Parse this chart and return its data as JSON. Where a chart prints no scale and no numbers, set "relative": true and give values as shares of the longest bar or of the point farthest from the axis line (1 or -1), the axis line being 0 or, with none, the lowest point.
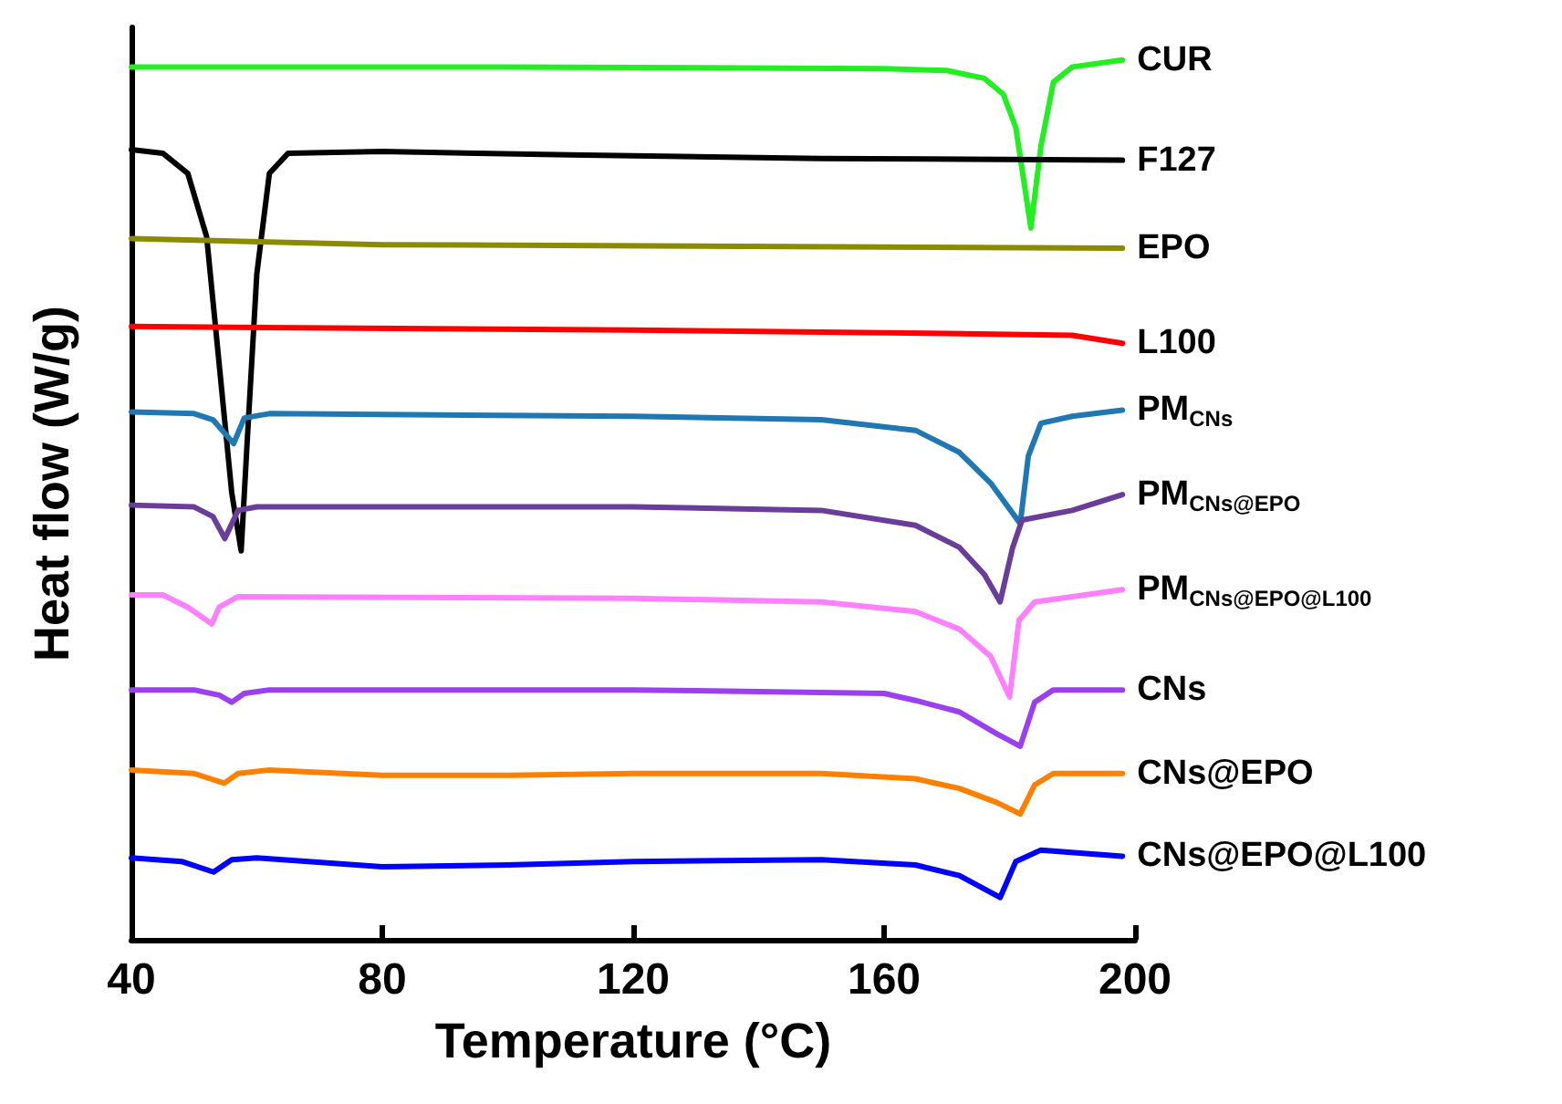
{
  "chart_data": {
    "type": "line",
    "relative": true,
    "xlabel": "Temperature (°C)",
    "ylabel": "Heat flow (W/g)",
    "xlim": [
      40,
      200
    ],
    "xticks": [
      40,
      80,
      120,
      160,
      200
    ],
    "legend": false,
    "grid": false,
    "marker": "none",
    "line_style": "solid",
    "series": [
      {
        "name": "CUR",
        "color": "#22ee22",
        "x": [
          40,
          100,
          160,
          170,
          176,
          179,
          181,
          183.4,
          185,
          187,
          190,
          198
        ],
        "values": [
          0.992,
          0.992,
          0.99,
          0.988,
          0.979,
          0.961,
          0.923,
          0.809,
          0.902,
          0.975,
          0.992,
          1.0
        ]
      },
      {
        "name": "F127",
        "color": "#000000",
        "x": [
          40,
          45,
          49,
          52,
          54,
          56,
          57.5,
          58.5,
          60,
          62,
          65,
          80,
          110,
          150,
          198
        ],
        "values": [
          0.898,
          0.894,
          0.871,
          0.799,
          0.654,
          0.508,
          0.442,
          0.571,
          0.757,
          0.871,
          0.894,
          0.896,
          0.892,
          0.888,
          0.886
        ]
      },
      {
        "name": "EPO",
        "color": "#8b8b00",
        "x": [
          40,
          80,
          198
        ],
        "values": [
          0.797,
          0.79,
          0.786
        ]
      },
      {
        "name": "L100",
        "color": "#ff0000",
        "x": [
          40,
          120,
          170,
          190,
          198
        ],
        "values": [
          0.697,
          0.693,
          0.689,
          0.687,
          0.678
        ]
      },
      {
        "name": "PM$_{CNs}$",
        "color": "#1f77b4",
        "x": [
          40,
          50,
          53,
          56.3,
          58,
          62,
          120,
          150,
          165,
          172,
          177,
          181.7,
          183,
          185,
          190,
          198
        ],
        "values": [
          0.6,
          0.598,
          0.591,
          0.564,
          0.593,
          0.598,
          0.595,
          0.591,
          0.579,
          0.554,
          0.519,
          0.473,
          0.55,
          0.587,
          0.595,
          0.602
        ]
      },
      {
        "name": "PM$_{CNs@EPO}$",
        "color": "#6a3d9a",
        "x": [
          40,
          50,
          53,
          54.9,
          57,
          60,
          120,
          150,
          165,
          172,
          176,
          178.5,
          180.5,
          182,
          190,
          198
        ],
        "values": [
          0.494,
          0.492,
          0.481,
          0.456,
          0.488,
          0.492,
          0.492,
          0.488,
          0.471,
          0.446,
          0.415,
          0.384,
          0.446,
          0.477,
          0.488,
          0.506
        ]
      },
      {
        "name": "PM$_{CNs@EPO@L100}$",
        "color": "#ff80ff",
        "x": [
          40,
          45,
          49,
          52.8,
          54,
          57,
          120,
          150,
          165,
          172,
          177,
          180,
          181.5,
          184,
          198
        ],
        "values": [
          0.392,
          0.392,
          0.378,
          0.359,
          0.378,
          0.39,
          0.388,
          0.384,
          0.373,
          0.353,
          0.322,
          0.276,
          0.363,
          0.384,
          0.398
        ]
      },
      {
        "name": "CNs",
        "color": "#9b40f0",
        "x": [
          40,
          50,
          54,
          56,
          58,
          62,
          120,
          160,
          165,
          172,
          178,
          181.7,
          184,
          187,
          198
        ],
        "values": [
          0.284,
          0.284,
          0.278,
          0.27,
          0.28,
          0.284,
          0.284,
          0.28,
          0.272,
          0.259,
          0.234,
          0.22,
          0.27,
          0.284,
          0.284
        ]
      },
      {
        "name": "CNs@EPO",
        "color": "#ff8000",
        "x": [
          40,
          50,
          54.8,
          57,
          62,
          80,
          100,
          120,
          150,
          165,
          172,
          178,
          181.7,
          184,
          187,
          198
        ],
        "values": [
          0.193,
          0.189,
          0.178,
          0.189,
          0.193,
          0.187,
          0.187,
          0.189,
          0.189,
          0.183,
          0.172,
          0.156,
          0.143,
          0.176,
          0.189,
          0.189
        ]
      },
      {
        "name": "CNs@EPO@L100",
        "color": "#0000ff",
        "x": [
          40,
          48,
          53.1,
          56,
          60,
          80,
          100,
          120,
          150,
          165,
          172,
          178.5,
          181,
          185,
          198
        ],
        "values": [
          0.093,
          0.089,
          0.077,
          0.091,
          0.093,
          0.083,
          0.085,
          0.089,
          0.091,
          0.085,
          0.073,
          0.048,
          0.089,
          0.102,
          0.095
        ]
      }
    ]
  }
}
